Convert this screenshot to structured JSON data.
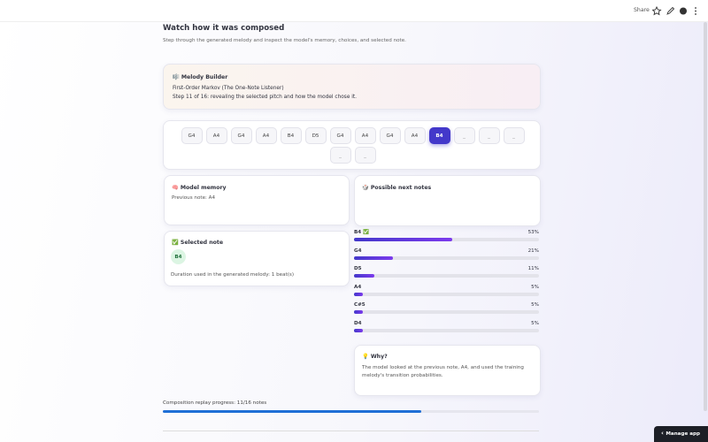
{
  "toolbar": {
    "share": "Share",
    "manage_app": "Manage app"
  },
  "header": {
    "title": "Watch how it was composed",
    "subtitle": "Step through the generated melody and inspect the model's memory, choices, and selected note."
  },
  "builder": {
    "title": "🎼 Melody Builder",
    "model": "First-Order Markov (The One-Note Listener)",
    "step": "Step 11 of 16: revealing the selected pitch and how the model chose it."
  },
  "notes": [
    {
      "label": "G4",
      "state": "played"
    },
    {
      "label": "A4",
      "state": "played"
    },
    {
      "label": "G4",
      "state": "played"
    },
    {
      "label": "A4",
      "state": "played"
    },
    {
      "label": "B4",
      "state": "played"
    },
    {
      "label": "D5",
      "state": "played"
    },
    {
      "label": "G4",
      "state": "played"
    },
    {
      "label": "A4",
      "state": "played"
    },
    {
      "label": "G4",
      "state": "played"
    },
    {
      "label": "A4",
      "state": "played"
    },
    {
      "label": "B4",
      "state": "current"
    },
    {
      "label": "_",
      "state": "pending"
    },
    {
      "label": "_",
      "state": "pending"
    },
    {
      "label": "_",
      "state": "pending"
    },
    {
      "label": "_",
      "state": "pending"
    },
    {
      "label": "_",
      "state": "pending"
    }
  ],
  "memory": {
    "title": "🧠 Model memory",
    "text": "Previous note: A4"
  },
  "next_notes": {
    "title": "🎲 Possible next notes",
    "range": [
      0,
      100
    ],
    "items": [
      {
        "note": "B4 ✅",
        "value": 53,
        "label": "53%"
      },
      {
        "note": "G4",
        "value": 21,
        "label": "21%"
      },
      {
        "note": "D5",
        "value": 11,
        "label": "11%"
      },
      {
        "note": "A4",
        "value": 5,
        "label": "5%"
      },
      {
        "note": "C#5",
        "value": 5,
        "label": "5%"
      },
      {
        "note": "D4",
        "value": 5,
        "label": "5%"
      }
    ]
  },
  "selected": {
    "title": "✅ Selected note",
    "note": "B4",
    "duration": "Duration used in the generated melody: 1 beat(s)"
  },
  "why": {
    "title": "💡 Why?",
    "text": "The model looked at the previous note, A4, and used the training melody's transition probabilities."
  },
  "progress": {
    "label": "Composition replay progress: 11/16 notes",
    "current": 11,
    "total": 16
  }
}
